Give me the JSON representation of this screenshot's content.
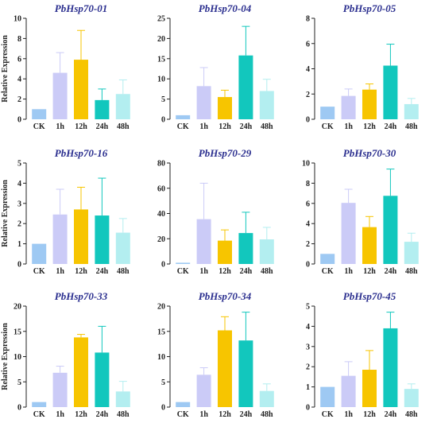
{
  "colors": {
    "CK": "#9ec9f3",
    "1h": "#cbcbf7",
    "12h": "#f7c500",
    "24h": "#12c7bd",
    "48h": "#b3eef0",
    "title": "#2b2f8f",
    "axis": "#222222"
  },
  "chart_data": [
    {
      "type": "bar",
      "title": "PbHsp70-01",
      "ylabel": "Relative Expression",
      "categories": [
        "CK",
        "1h",
        "12h",
        "24h",
        "48h"
      ],
      "values": [
        1.0,
        4.6,
        5.9,
        1.9,
        2.5
      ],
      "errors": [
        0,
        2.0,
        2.9,
        1.1,
        1.4
      ],
      "ylim": [
        0,
        10
      ],
      "yticks": [
        0,
        2,
        4,
        6,
        8,
        10
      ],
      "ytick_labels": [
        "0",
        "2",
        "4",
        "6",
        "8",
        "10"
      ]
    },
    {
      "type": "bar",
      "title": "PbHsp70-04",
      "ylabel": "",
      "categories": [
        "CK",
        "1h",
        "12h",
        "24h",
        "48h"
      ],
      "values": [
        1.0,
        8.2,
        5.5,
        15.8,
        7.0
      ],
      "errors": [
        0,
        4.6,
        1.7,
        7.2,
        2.9
      ],
      "ylim": [
        0,
        25
      ],
      "yticks": [
        0,
        5,
        10,
        15,
        20,
        25
      ],
      "ytick_labels": [
        "0",
        "5",
        "10",
        "15",
        "20",
        "25"
      ]
    },
    {
      "type": "bar",
      "title": "PbHsp70-05",
      "ylabel": "",
      "categories": [
        "CK",
        "1h",
        "12h",
        "24h",
        "48h"
      ],
      "values": [
        1.0,
        1.85,
        2.35,
        4.25,
        1.2
      ],
      "errors": [
        0,
        0.55,
        0.45,
        1.7,
        0.45
      ],
      "ylim": [
        0,
        8
      ],
      "yticks": [
        0,
        2,
        4,
        6,
        8
      ],
      "ytick_labels": [
        "0",
        "2",
        "4",
        "6",
        "8"
      ]
    },
    {
      "type": "bar",
      "title": "PbHsp70-16",
      "ylabel": "Relative Expression",
      "categories": [
        "CK",
        "1h",
        "12h",
        "24h",
        "48h"
      ],
      "values": [
        1.0,
        2.45,
        2.7,
        2.4,
        1.55
      ],
      "errors": [
        0,
        1.25,
        1.1,
        1.85,
        0.7
      ],
      "ylim": [
        0,
        5
      ],
      "yticks": [
        0,
        1,
        2,
        3,
        4,
        5
      ],
      "ytick_labels": [
        "0",
        "1",
        "2",
        "3",
        "4",
        "5"
      ]
    },
    {
      "type": "bar",
      "title": "PbHsp70-29",
      "ylabel": "",
      "categories": [
        "CK",
        "1h",
        "12h",
        "24h",
        "48h"
      ],
      "values": [
        1.0,
        35.5,
        18.5,
        24.5,
        19.5
      ],
      "errors": [
        0,
        28.5,
        8.5,
        16.5,
        9.5
      ],
      "ylim": [
        0,
        80
      ],
      "yticks": [
        0,
        20,
        40,
        60,
        80
      ],
      "ytick_labels": [
        "0",
        "20",
        "40",
        "60",
        "80"
      ]
    },
    {
      "type": "bar",
      "title": "PbHsp70-30",
      "ylabel": "",
      "categories": [
        "CK",
        "1h",
        "12h",
        "24h",
        "48h"
      ],
      "values": [
        1.0,
        6.05,
        3.65,
        6.75,
        2.2
      ],
      "errors": [
        0,
        1.35,
        1.05,
        2.65,
        0.85
      ],
      "ylim": [
        0,
        10
      ],
      "yticks": [
        0,
        2,
        4,
        6,
        8,
        10
      ],
      "ytick_labels": [
        "0",
        "2",
        "4",
        "6",
        "8",
        "10"
      ]
    },
    {
      "type": "bar",
      "title": "PbHsp70-33",
      "ylabel": "Relative Expression",
      "categories": [
        "CK",
        "1h",
        "12h",
        "24h",
        "48h"
      ],
      "values": [
        1.0,
        6.8,
        13.8,
        10.8,
        3.1
      ],
      "errors": [
        0,
        1.3,
        0.6,
        5.2,
        2.0
      ],
      "ylim": [
        0,
        20
      ],
      "yticks": [
        0,
        5,
        10,
        15,
        20
      ],
      "ytick_labels": [
        "0",
        "5",
        "10",
        "15",
        "20"
      ]
    },
    {
      "type": "bar",
      "title": "PbHsp70-34",
      "ylabel": "",
      "categories": [
        "CK",
        "1h",
        "12h",
        "24h",
        "48h"
      ],
      "values": [
        1.0,
        6.4,
        15.2,
        13.2,
        3.2
      ],
      "errors": [
        0,
        1.4,
        2.7,
        5.6,
        1.4
      ],
      "ylim": [
        0,
        20
      ],
      "yticks": [
        0,
        5,
        10,
        15,
        20
      ],
      "ytick_labels": [
        "0",
        "5",
        "10",
        "15",
        "20"
      ]
    },
    {
      "type": "bar",
      "title": "PbHsp70-45",
      "ylabel": "",
      "categories": [
        "CK",
        "1h",
        "12h",
        "24h",
        "48h"
      ],
      "values": [
        1.0,
        1.55,
        1.85,
        3.9,
        0.9
      ],
      "errors": [
        0,
        0.7,
        0.95,
        0.8,
        0.25
      ],
      "ylim": [
        0,
        5
      ],
      "yticks": [
        0,
        1,
        2,
        3,
        4,
        5
      ],
      "ytick_labels": [
        "0",
        "1",
        "2",
        "3",
        "4",
        "5"
      ]
    }
  ]
}
